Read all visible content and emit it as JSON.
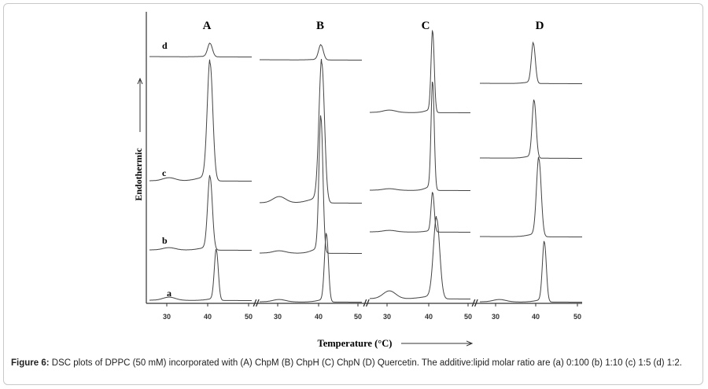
{
  "figure": {
    "panels": [
      {
        "label": "A",
        "x_ticks": [
          "30",
          "40",
          "50"
        ]
      },
      {
        "label": "B",
        "x_ticks": [
          "30",
          "40",
          "50"
        ]
      },
      {
        "label": "C",
        "x_ticks": [
          "30",
          "40",
          "50"
        ]
      },
      {
        "label": "D",
        "x_ticks": [
          "30",
          "40",
          "50"
        ]
      }
    ],
    "curve_labels": [
      "d",
      "c",
      "b",
      "a"
    ],
    "y_label": "Endothermic",
    "x_label": "Temperature (°C)"
  },
  "caption": {
    "lead": "Figure 6:",
    "text": " DSC plots of DPPC (50 mM) incorporated with (A) ChpM (B) ChpH (C) ChpN (D) Quercetin. The additive:lipid molar ratio are (a) 0:100 (b) 1:10 (c) 1:5 (d) 1:2."
  }
}
